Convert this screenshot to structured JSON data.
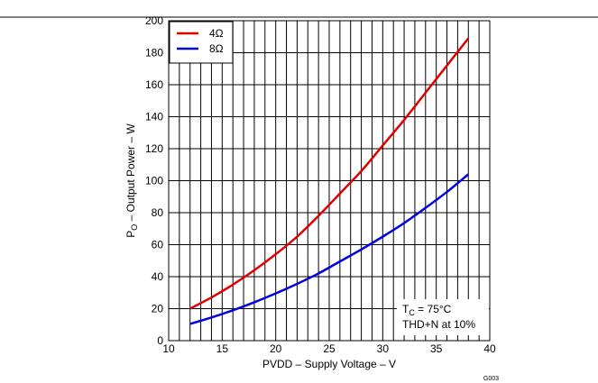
{
  "chart_data": {
    "type": "line",
    "figure_id": "G003",
    "xlabel": "PVDD – Supply Voltage – V",
    "ylabel_main": "P",
    "ylabel_sub": "O",
    "ylabel_rest": " – Output Power – W",
    "xlim": [
      10,
      40
    ],
    "ylim": [
      0,
      200
    ],
    "x_ticks": [
      10,
      15,
      20,
      25,
      30,
      35,
      40
    ],
    "y_ticks": [
      0,
      20,
      40,
      60,
      80,
      100,
      120,
      140,
      160,
      180,
      200
    ],
    "grid": true,
    "legend_position": "top-left",
    "annotation": {
      "line1_main": "T",
      "line1_sub": "C",
      "line1_rest": " = 75°C",
      "line2": "THD+N at 10%"
    },
    "series": [
      {
        "name": "4Ω",
        "color": "#e00000",
        "x": [
          12,
          14,
          16,
          18,
          20,
          22,
          24,
          26,
          28,
          30,
          32,
          34,
          36,
          38
        ],
        "y": [
          20,
          27,
          35,
          44,
          54,
          65,
          78,
          92,
          106,
          122,
          138,
          155,
          172,
          189
        ]
      },
      {
        "name": "8Ω",
        "color": "#0000e0",
        "x": [
          12,
          14,
          16,
          18,
          20,
          22,
          24,
          26,
          28,
          30,
          32,
          34,
          36,
          38
        ],
        "y": [
          10.5,
          14.5,
          19,
          24,
          29.5,
          35.5,
          42,
          49.5,
          57,
          65,
          73.5,
          83,
          93,
          104
        ]
      }
    ]
  }
}
